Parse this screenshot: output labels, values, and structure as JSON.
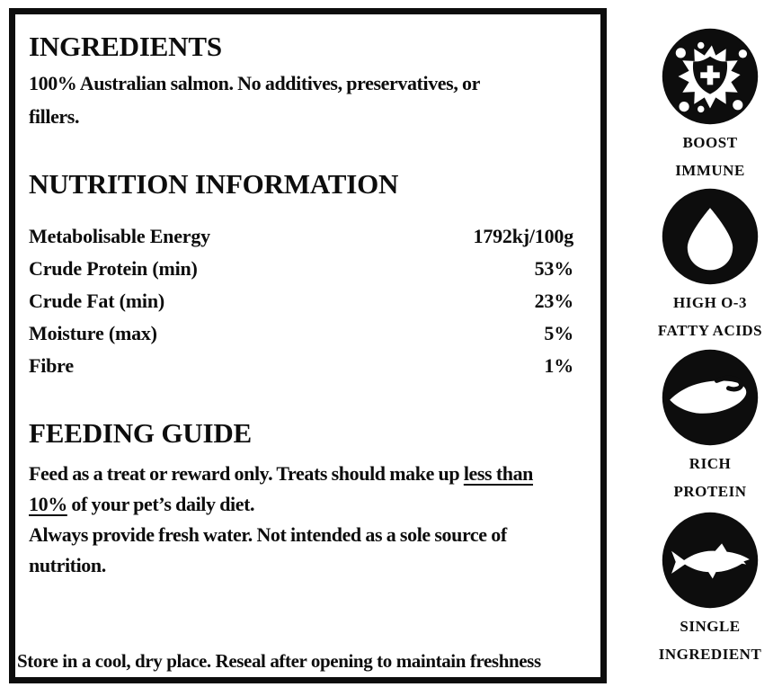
{
  "page": {
    "background": "#ffffff",
    "ink": "#0d0d0d"
  },
  "label_box": {
    "ingredients": {
      "heading": "INGREDIENTS",
      "lines": [
        "100% Australian salmon. No additives, preservatives, or",
        "fillers."
      ]
    },
    "nutrition": {
      "heading": "NUTRITION INFORMATION",
      "rows": [
        {
          "label": "Metabolisable Energy",
          "value": "1792kj/100g"
        },
        {
          "label": "Crude Protein (min)",
          "value": "53%"
        },
        {
          "label": "Crude Fat (min)",
          "value": "23%"
        },
        {
          "label": "Moisture (max)",
          "value": "5%"
        },
        {
          "label": "Fibre",
          "value": "1%"
        }
      ]
    },
    "feeding": {
      "heading": "FEEDING GUIDE",
      "lines": [
        [
          {
            "text": "Feed as a treat or reward only. Treats should make up ",
            "underline": false
          },
          {
            "text": "less than",
            "underline": true
          }
        ],
        [
          {
            "text": "10%",
            "underline": true
          },
          {
            "text": " of your pet’s daily diet.",
            "underline": false
          }
        ],
        [
          {
            "text": "Always provide fresh water. Not intended as a sole source of",
            "underline": false
          }
        ],
        [
          {
            "text": "nutrition.",
            "underline": false
          }
        ]
      ]
    },
    "storage_note": "Store in a cool, dry place. Reseal after opening to maintain freshness"
  },
  "benefit_icons": [
    {
      "icon": "immune-shield-icon",
      "label_lines": [
        "BOOST",
        "IMMUNE"
      ]
    },
    {
      "icon": "omega3-drop-icon",
      "label_lines": [
        "HIGH O-3",
        "FATTY ACIDS"
      ]
    },
    {
      "icon": "protein-fillet-icon",
      "label_lines": [
        "RICH",
        "PROTEIN"
      ]
    },
    {
      "icon": "single-ingredient-fish-icon",
      "label_lines": [
        "SINGLE",
        "INGREDIENT"
      ]
    }
  ]
}
